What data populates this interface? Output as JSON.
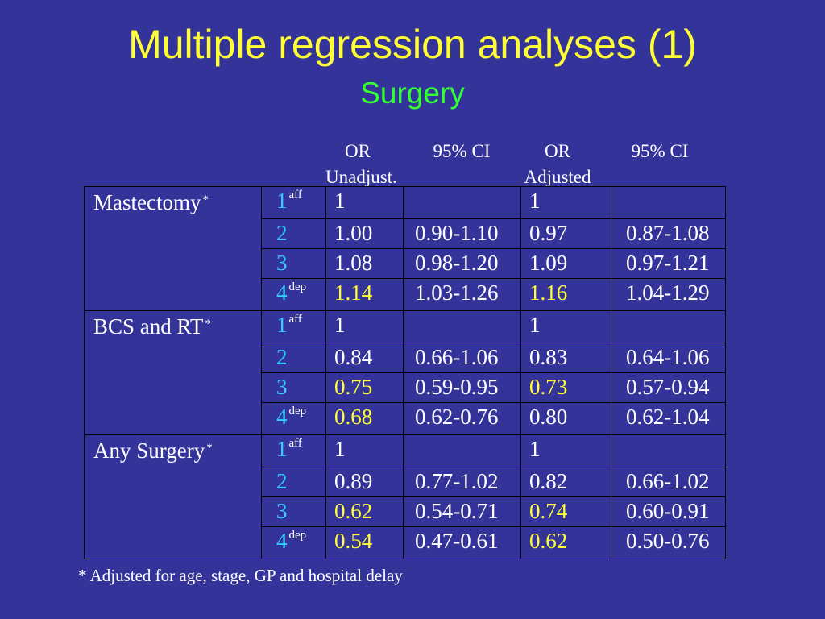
{
  "title": "Multiple regression analyses (1)",
  "subtitle": "Surgery",
  "column_headers": [
    {
      "line1": "OR",
      "line2": "Unadjust."
    },
    {
      "line1": "95% CI",
      "line2": ""
    },
    {
      "line1": "OR",
      "line2": "Adjusted"
    },
    {
      "line1": "95% CI",
      "line2": ""
    }
  ],
  "groups": [
    {
      "label": "Mastectomy",
      "marker": "*",
      "rows": [
        {
          "level": "1",
          "level_sup": "aff",
          "or_unadj": "1",
          "or_unadj_sig": false,
          "ci_unadj": "",
          "or_adj": "1",
          "or_adj_sig": false,
          "ci_adj": ""
        },
        {
          "level": "2",
          "level_sup": "",
          "or_unadj": "1.00",
          "or_unadj_sig": false,
          "ci_unadj": "0.90-1.10",
          "or_adj": "0.97",
          "or_adj_sig": false,
          "ci_adj": "0.87-1.08"
        },
        {
          "level": "3",
          "level_sup": "",
          "or_unadj": "1.08",
          "or_unadj_sig": false,
          "ci_unadj": "0.98-1.20",
          "or_adj": "1.09",
          "or_adj_sig": false,
          "ci_adj": "0.97-1.21"
        },
        {
          "level": "4",
          "level_sup": "dep",
          "or_unadj": "1.14",
          "or_unadj_sig": true,
          "ci_unadj": "1.03-1.26",
          "or_adj": "1.16",
          "or_adj_sig": true,
          "ci_adj": "1.04-1.29"
        }
      ]
    },
    {
      "label": "BCS and RT",
      "marker": "*",
      "rows": [
        {
          "level": "1",
          "level_sup": "aff",
          "or_unadj": "1",
          "or_unadj_sig": false,
          "ci_unadj": "",
          "or_adj": "1",
          "or_adj_sig": false,
          "ci_adj": ""
        },
        {
          "level": "2",
          "level_sup": "",
          "or_unadj": "0.84",
          "or_unadj_sig": false,
          "ci_unadj": "0.66-1.06",
          "or_adj": "0.83",
          "or_adj_sig": false,
          "ci_adj": "0.64-1.06"
        },
        {
          "level": "3",
          "level_sup": "",
          "or_unadj": "0.75",
          "or_unadj_sig": true,
          "ci_unadj": "0.59-0.95",
          "or_adj": "0.73",
          "or_adj_sig": true,
          "ci_adj": "0.57-0.94"
        },
        {
          "level": "4",
          "level_sup": "dep",
          "or_unadj": "0.68",
          "or_unadj_sig": true,
          "ci_unadj": "0.62-0.76",
          "or_adj": "0.80",
          "or_adj_sig": false,
          "ci_adj": "0.62-1.04"
        }
      ]
    },
    {
      "label": "Any Surgery",
      "marker": "*",
      "rows": [
        {
          "level": "1",
          "level_sup": "aff",
          "or_unadj": "1",
          "or_unadj_sig": false,
          "ci_unadj": "",
          "or_adj": "1",
          "or_adj_sig": false,
          "ci_adj": ""
        },
        {
          "level": "2",
          "level_sup": "",
          "or_unadj": "0.89",
          "or_unadj_sig": false,
          "ci_unadj": "0.77-1.02",
          "or_adj": "0.82",
          "or_adj_sig": false,
          "ci_adj": "0.66-1.02"
        },
        {
          "level": "3",
          "level_sup": "",
          "or_unadj": "0.62",
          "or_unadj_sig": true,
          "ci_unadj": "0.54-0.71",
          "or_adj": "0.74",
          "or_adj_sig": true,
          "ci_adj": "0.60-0.91"
        },
        {
          "level": "4",
          "level_sup": "dep",
          "or_unadj": "0.54",
          "or_unadj_sig": true,
          "ci_unadj": "0.47-0.61",
          "or_adj": "0.62",
          "or_adj_sig": true,
          "ci_adj": "0.50-0.76"
        }
      ]
    }
  ],
  "footnote": "* Adjusted for age, stage, GP and hospital delay",
  "colors": {
    "background": "#333399",
    "title": "#ffff33",
    "subtitle": "#33ff33",
    "level": "#33ccff",
    "significant": "#ffff33",
    "text": "#ffffff"
  }
}
